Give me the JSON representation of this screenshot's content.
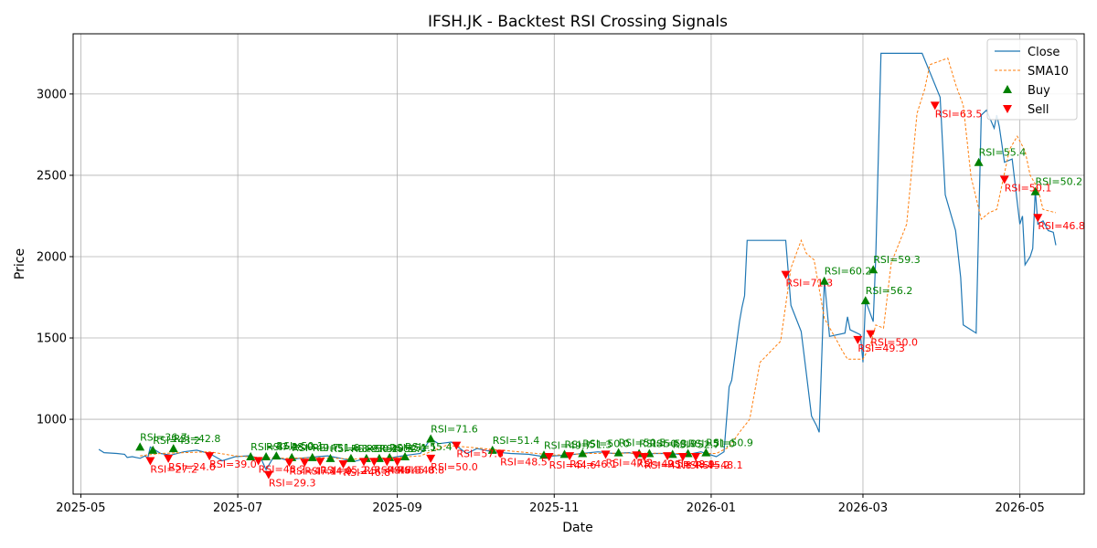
{
  "chart_data": {
    "type": "line",
    "title": "IFSH.JK - Backtest RSI Crossing Signals",
    "xlabel": "Date",
    "ylabel": "Price",
    "xlim": [
      "2025-04-28",
      "2026-05-26"
    ],
    "ylim": [
      540,
      3370
    ],
    "x_ticks": [
      "2025-05-01",
      "2025-07-01",
      "2025-09-01",
      "2025-11-01",
      "2026-01-01",
      "2026-03-01",
      "2026-05-01"
    ],
    "x_tick_labels": [
      "2025-05",
      "2025-07",
      "2025-09",
      "2025-11",
      "2026-01",
      "2026-03",
      "2026-05"
    ],
    "y_ticks": [
      1000,
      1500,
      2000,
      2500,
      3000
    ],
    "y_tick_labels": [
      "1000",
      "1500",
      "2000",
      "2500",
      "3000"
    ],
    "grid": true,
    "legend": {
      "placement": "upper right",
      "entries": [
        "Close",
        "SMA10",
        "Buy",
        "Sell"
      ]
    },
    "colors": {
      "close": "#1f77b4",
      "sma": "#ff7f0e",
      "buy": "#008000",
      "sell": "#ff0000"
    },
    "series": [
      {
        "name": "Close",
        "style": "solid",
        "points": [
          [
            "2025-05-08",
            815
          ],
          [
            "2025-05-10",
            795
          ],
          [
            "2025-05-15",
            790
          ],
          [
            "2025-05-18",
            785
          ],
          [
            "2025-05-19",
            765
          ],
          [
            "2025-05-21",
            770
          ],
          [
            "2025-05-24",
            760
          ],
          [
            "2025-05-26",
            775
          ],
          [
            "2025-05-27",
            760
          ],
          [
            "2025-05-28",
            830
          ],
          [
            "2025-06-01",
            790
          ],
          [
            "2025-06-05",
            780
          ],
          [
            "2025-06-10",
            800
          ],
          [
            "2025-06-15",
            810
          ],
          [
            "2025-06-20",
            790
          ],
          [
            "2025-06-25",
            745
          ],
          [
            "2025-06-30",
            770
          ],
          [
            "2025-07-05",
            775
          ],
          [
            "2025-07-10",
            760
          ],
          [
            "2025-07-12",
            690
          ],
          [
            "2025-07-15",
            770
          ],
          [
            "2025-07-20",
            750
          ],
          [
            "2025-07-25",
            760
          ],
          [
            "2025-08-01",
            770
          ],
          [
            "2025-08-05",
            775
          ],
          [
            "2025-08-10",
            760
          ],
          [
            "2025-08-15",
            740
          ],
          [
            "2025-08-20",
            760
          ],
          [
            "2025-08-25",
            750
          ],
          [
            "2025-09-01",
            770
          ],
          [
            "2025-09-05",
            780
          ],
          [
            "2025-09-10",
            790
          ],
          [
            "2025-09-14",
            880
          ],
          [
            "2025-09-17",
            850
          ],
          [
            "2025-09-22",
            860
          ],
          [
            "2025-09-28",
            790
          ],
          [
            "2025-10-02",
            820
          ],
          [
            "2025-10-08",
            800
          ],
          [
            "2025-10-15",
            790
          ],
          [
            "2025-10-22",
            785
          ],
          [
            "2025-10-28",
            770
          ],
          [
            "2025-11-01",
            775
          ],
          [
            "2025-11-06",
            780
          ],
          [
            "2025-11-12",
            790
          ],
          [
            "2025-11-18",
            800
          ],
          [
            "2025-11-24",
            790
          ],
          [
            "2025-11-30",
            795
          ],
          [
            "2025-12-05",
            780
          ],
          [
            "2025-12-10",
            790
          ],
          [
            "2025-12-15",
            790
          ],
          [
            "2025-12-20",
            785
          ],
          [
            "2025-12-25",
            790
          ],
          [
            "2025-12-28",
            800
          ],
          [
            "2026-01-03",
            770
          ],
          [
            "2026-01-06",
            800
          ],
          [
            "2026-01-08",
            1200
          ],
          [
            "2026-01-09",
            1240
          ],
          [
            "2026-01-12",
            1600
          ],
          [
            "2026-01-13",
            1690
          ],
          [
            "2026-01-14",
            1760
          ],
          [
            "2026-01-15",
            2100
          ],
          [
            "2026-01-30",
            2100
          ],
          [
            "2026-02-01",
            1700
          ],
          [
            "2026-02-05",
            1540
          ],
          [
            "2026-02-07",
            1280
          ],
          [
            "2026-02-09",
            1020
          ],
          [
            "2026-02-11",
            960
          ],
          [
            "2026-02-12",
            920
          ],
          [
            "2026-02-14",
            1860
          ],
          [
            "2026-02-16",
            1510
          ],
          [
            "2026-02-22",
            1530
          ],
          [
            "2026-02-23",
            1630
          ],
          [
            "2026-02-24",
            1550
          ],
          [
            "2026-02-28",
            1520
          ],
          [
            "2026-03-01",
            1350
          ],
          [
            "2026-03-02",
            1730
          ],
          [
            "2026-03-05",
            1600
          ],
          [
            "2026-03-06",
            2000
          ],
          [
            "2026-03-08",
            3250
          ],
          [
            "2026-03-24",
            3250
          ],
          [
            "2026-03-31",
            2980
          ],
          [
            "2026-04-02",
            2380
          ],
          [
            "2026-04-06",
            2160
          ],
          [
            "2026-04-08",
            1870
          ],
          [
            "2026-04-09",
            1580
          ],
          [
            "2026-04-14",
            1530
          ],
          [
            "2026-04-16",
            2870
          ],
          [
            "2026-04-18",
            2900
          ],
          [
            "2026-04-21",
            2790
          ],
          [
            "2026-04-22",
            2870
          ],
          [
            "2026-04-23",
            2800
          ],
          [
            "2026-04-25",
            2580
          ],
          [
            "2026-04-28",
            2600
          ],
          [
            "2026-05-01",
            2200
          ],
          [
            "2026-05-02",
            2250
          ],
          [
            "2026-05-03",
            1950
          ],
          [
            "2026-05-05",
            2000
          ],
          [
            "2026-05-06",
            2050
          ],
          [
            "2026-05-07",
            2410
          ],
          [
            "2026-05-08",
            2200
          ],
          [
            "2026-05-10",
            2220
          ],
          [
            "2026-05-12",
            2160
          ],
          [
            "2026-05-14",
            2150
          ],
          [
            "2026-05-15",
            2070
          ]
        ]
      },
      {
        "name": "SMA10",
        "style": "dashed",
        "points": [
          [
            "2025-05-24",
            775
          ],
          [
            "2025-06-01",
            790
          ],
          [
            "2025-06-10",
            795
          ],
          [
            "2025-06-20",
            800
          ],
          [
            "2025-06-30",
            775
          ],
          [
            "2025-07-10",
            765
          ],
          [
            "2025-07-20",
            760
          ],
          [
            "2025-08-01",
            765
          ],
          [
            "2025-08-15",
            755
          ],
          [
            "2025-09-01",
            765
          ],
          [
            "2025-09-10",
            775
          ],
          [
            "2025-09-20",
            840
          ],
          [
            "2025-10-01",
            825
          ],
          [
            "2025-10-15",
            805
          ],
          [
            "2025-11-01",
            780
          ],
          [
            "2025-11-15",
            790
          ],
          [
            "2025-12-01",
            792
          ],
          [
            "2025-12-20",
            790
          ],
          [
            "2026-01-03",
            790
          ],
          [
            "2026-01-08",
            830
          ],
          [
            "2026-01-12",
            920
          ],
          [
            "2026-01-16",
            1000
          ],
          [
            "2026-01-20",
            1350
          ],
          [
            "2026-01-28",
            1480
          ],
          [
            "2026-02-01",
            1930
          ],
          [
            "2026-02-05",
            2100
          ],
          [
            "2026-02-07",
            2020
          ],
          [
            "2026-02-10",
            1980
          ],
          [
            "2026-02-14",
            1620
          ],
          [
            "2026-02-19",
            1480
          ],
          [
            "2026-02-21",
            1420
          ],
          [
            "2026-02-23",
            1370
          ],
          [
            "2026-03-01",
            1370
          ],
          [
            "2026-03-04",
            1460
          ],
          [
            "2026-03-06",
            1580
          ],
          [
            "2026-03-09",
            1560
          ],
          [
            "2026-03-12",
            1960
          ],
          [
            "2026-03-18",
            2200
          ],
          [
            "2026-03-22",
            2880
          ],
          [
            "2026-03-25",
            3030
          ],
          [
            "2026-03-27",
            3180
          ],
          [
            "2026-04-03",
            3220
          ],
          [
            "2026-04-06",
            3060
          ],
          [
            "2026-04-09",
            2930
          ],
          [
            "2026-04-12",
            2490
          ],
          [
            "2026-04-16",
            2230
          ],
          [
            "2026-04-19",
            2270
          ],
          [
            "2026-04-22",
            2290
          ],
          [
            "2026-04-27",
            2660
          ],
          [
            "2026-04-30",
            2740
          ],
          [
            "2026-05-03",
            2650
          ],
          [
            "2026-05-05",
            2500
          ],
          [
            "2026-05-08",
            2420
          ],
          [
            "2026-05-10",
            2290
          ],
          [
            "2026-05-15",
            2270
          ]
        ]
      }
    ],
    "buy_signals": [
      {
        "date": "2025-05-24",
        "price": 830,
        "label": "RSI=36.7"
      },
      {
        "date": "2025-05-29",
        "price": 810,
        "label": "RSI=43.2"
      },
      {
        "date": "2025-06-06",
        "price": 820,
        "label": "RSI=42.8"
      },
      {
        "date": "2025-07-06",
        "price": 770,
        "label": "RSI=47.2"
      },
      {
        "date": "2025-07-12",
        "price": 770,
        "label": "RSI=48.0"
      },
      {
        "date": "2025-07-16",
        "price": 775,
        "label": "RSI=50.1"
      },
      {
        "date": "2025-07-22",
        "price": 765,
        "label": "RSI=49.7"
      },
      {
        "date": "2025-07-30",
        "price": 765,
        "label": "RSI=51.6"
      },
      {
        "date": "2025-08-06",
        "price": 760,
        "label": "RSI=48.9"
      },
      {
        "date": "2025-08-14",
        "price": 760,
        "label": "RSI=50.2"
      },
      {
        "date": "2025-08-20",
        "price": 760,
        "label": "RSI=49.3"
      },
      {
        "date": "2025-08-25",
        "price": 760,
        "label": "RSI=52.0"
      },
      {
        "date": "2025-08-29",
        "price": 765,
        "label": "RSI=51.1"
      },
      {
        "date": "2025-09-04",
        "price": 770,
        "label": "RSI=55.4"
      },
      {
        "date": "2025-09-14",
        "price": 880,
        "label": "RSI=71.6"
      },
      {
        "date": "2025-10-08",
        "price": 810,
        "label": "RSI=51.4"
      },
      {
        "date": "2025-10-28",
        "price": 780,
        "label": "RSI=49.7"
      },
      {
        "date": "2025-11-05",
        "price": 785,
        "label": "RSI=51.3"
      },
      {
        "date": "2025-11-12",
        "price": 790,
        "label": "RSI=50.0"
      },
      {
        "date": "2025-11-26",
        "price": 795,
        "label": "RSI=50.5"
      },
      {
        "date": "2025-12-04",
        "price": 790,
        "label": "RSI=50.8"
      },
      {
        "date": "2025-12-08",
        "price": 790,
        "label": "RSI=53.9"
      },
      {
        "date": "2025-12-17",
        "price": 785,
        "label": "RSI=52.7"
      },
      {
        "date": "2025-12-23",
        "price": 790,
        "label": "RSI=51.0"
      },
      {
        "date": "2025-12-30",
        "price": 795,
        "label": "RSI=50.9"
      },
      {
        "date": "2026-02-14",
        "price": 1850,
        "label": "RSI=60.2"
      },
      {
        "date": "2026-03-02",
        "price": 1730,
        "label": "RSI=56.2"
      },
      {
        "date": "2026-03-05",
        "price": 1920,
        "label": "RSI=59.3"
      },
      {
        "date": "2026-04-15",
        "price": 2580,
        "label": "RSI=55.4"
      },
      {
        "date": "2026-05-07",
        "price": 2400,
        "label": "RSI=50.2"
      }
    ],
    "sell_signals": [
      {
        "date": "2025-05-28",
        "price": 745,
        "label": "RSI=27.2"
      },
      {
        "date": "2025-06-04",
        "price": 760,
        "label": "RSI=24.6"
      },
      {
        "date": "2025-06-20",
        "price": 775,
        "label": "RSI=39.0"
      },
      {
        "date": "2025-07-09",
        "price": 745,
        "label": "RSI=48.2"
      },
      {
        "date": "2025-07-13",
        "price": 660,
        "label": "RSI=29.3"
      },
      {
        "date": "2025-07-21",
        "price": 735,
        "label": "RSI=47.1"
      },
      {
        "date": "2025-07-27",
        "price": 735,
        "label": "RSI=44.0"
      },
      {
        "date": "2025-08-02",
        "price": 740,
        "label": "RSI=45.2"
      },
      {
        "date": "2025-08-11",
        "price": 725,
        "label": "RSI=46.8"
      },
      {
        "date": "2025-08-19",
        "price": 740,
        "label": "RSI=44.6"
      },
      {
        "date": "2025-08-23",
        "price": 740,
        "label": "RSI=47.3"
      },
      {
        "date": "2025-08-28",
        "price": 740,
        "label": "RSI=45.0"
      },
      {
        "date": "2025-09-01",
        "price": 740,
        "label": "RSI=48.8"
      },
      {
        "date": "2025-09-14",
        "price": 760,
        "label": "RSI=50.0"
      },
      {
        "date": "2025-09-24",
        "price": 840,
        "label": "RSI=57.6"
      },
      {
        "date": "2025-10-11",
        "price": 790,
        "label": "RSI=48.5"
      },
      {
        "date": "2025-10-30",
        "price": 770,
        "label": "RSI=44.6"
      },
      {
        "date": "2025-11-07",
        "price": 775,
        "label": "RSI=46.1"
      },
      {
        "date": "2025-11-21",
        "price": 785,
        "label": "RSI=47.2"
      },
      {
        "date": "2025-12-03",
        "price": 780,
        "label": "RSI=49.5"
      },
      {
        "date": "2025-12-06",
        "price": 770,
        "label": "RSI=41.8"
      },
      {
        "date": "2025-12-15",
        "price": 775,
        "label": "RSI=48.9"
      },
      {
        "date": "2025-12-21",
        "price": 770,
        "label": "RSI=45.2"
      },
      {
        "date": "2025-12-26",
        "price": 770,
        "label": "RSI=48.1"
      },
      {
        "date": "2026-01-30",
        "price": 1890,
        "label": "RSI=71.3"
      },
      {
        "date": "2026-02-27",
        "price": 1490,
        "label": "RSI=49.3"
      },
      {
        "date": "2026-03-04",
        "price": 1525,
        "label": "RSI=50.0"
      },
      {
        "date": "2026-03-29",
        "price": 2930,
        "label": "RSI=63.5"
      },
      {
        "date": "2026-04-25",
        "price": 2475,
        "label": "RSI=50.1"
      },
      {
        "date": "2026-05-08",
        "price": 2240,
        "label": "RSI=46.8"
      }
    ]
  }
}
